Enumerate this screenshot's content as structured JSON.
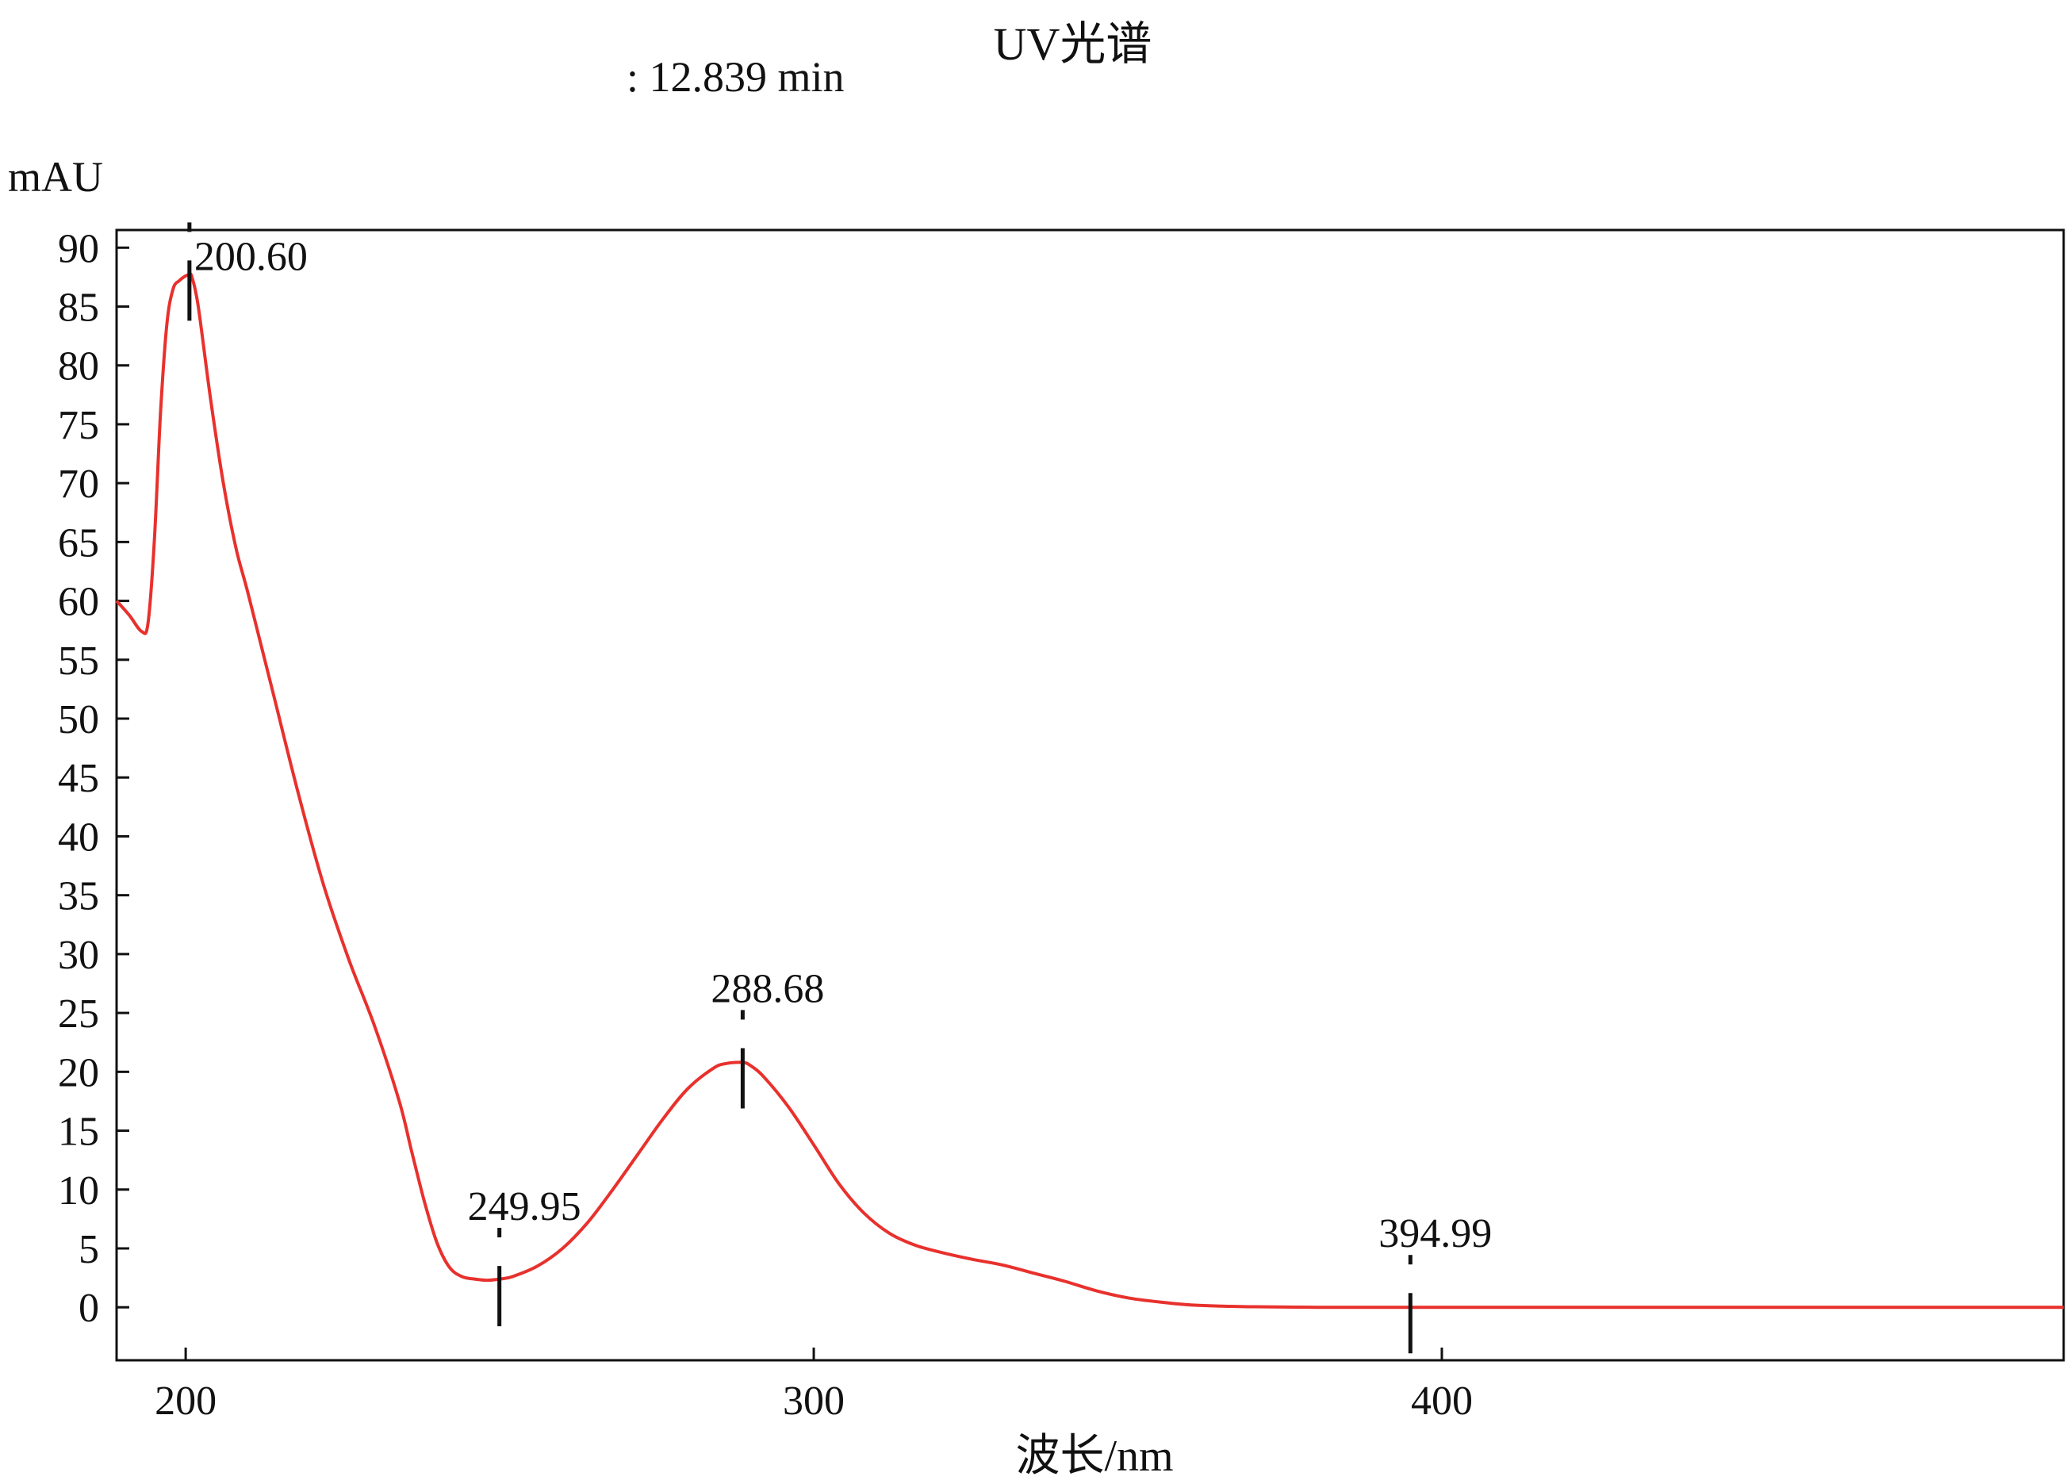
{
  "chart_data": {
    "type": "line",
    "title": "UV光谱",
    "subtitle": ": 12.839 min",
    "ylabel": "mAU",
    "xlabel": "波长/nm",
    "xlim": [
      189,
      499
    ],
    "ylim": [
      -4.5,
      91.5
    ],
    "xticks": [
      200,
      300,
      400
    ],
    "yticks": [
      0,
      5,
      10,
      15,
      20,
      25,
      30,
      35,
      40,
      45,
      50,
      55,
      60,
      65,
      70,
      75,
      80,
      85,
      90
    ],
    "grid": false,
    "series": [
      {
        "color": "#e8312d",
        "x": [
          189,
          191,
          193,
          194,
          195,
          196,
          197,
          198,
          199,
          200,
          200.6,
          201,
          202,
          204,
          206,
          208,
          210,
          214,
          218,
          222,
          226,
          230,
          234,
          236,
          238,
          240,
          242,
          244,
          246,
          248,
          250,
          252,
          256,
          260,
          264,
          268,
          272,
          276,
          280,
          284,
          286,
          288.68,
          290,
          292,
          296,
          300,
          304,
          308,
          312,
          316,
          320,
          325,
          330,
          335,
          340,
          345,
          350,
          355,
          360,
          365,
          370,
          380,
          390,
          394.99,
          400,
          420,
          440,
          460,
          480,
          499
        ],
        "y": [
          60,
          58.8,
          57.4,
          58.1,
          65,
          76,
          83.5,
          86.5,
          87.2,
          87.6,
          87.7,
          87.5,
          85,
          77,
          70,
          64.5,
          60.5,
          52,
          43.5,
          35.8,
          29.5,
          24,
          17.5,
          13.2,
          9,
          5.5,
          3.4,
          2.6,
          2.4,
          2.3,
          2.4,
          2.6,
          3.5,
          5,
          7.2,
          10,
          13,
          16,
          18.6,
          20.3,
          20.7,
          20.8,
          20.5,
          19.6,
          17,
          13.8,
          10.5,
          8,
          6.3,
          5.3,
          4.7,
          4.1,
          3.6,
          2.9,
          2.2,
          1.4,
          0.8,
          0.45,
          0.2,
          0.1,
          0.05,
          0,
          0,
          0,
          0,
          0,
          0,
          0,
          0,
          0
        ]
      }
    ],
    "annotations": [
      {
        "label": "200.60",
        "x": 200.6,
        "y": 87.7
      },
      {
        "label": "249.95",
        "x": 249.95,
        "y": 2.3
      },
      {
        "label": "288.68",
        "x": 288.68,
        "y": 20.8
      },
      {
        "label": "394.99",
        "x": 394.99,
        "y": 0
      }
    ]
  }
}
